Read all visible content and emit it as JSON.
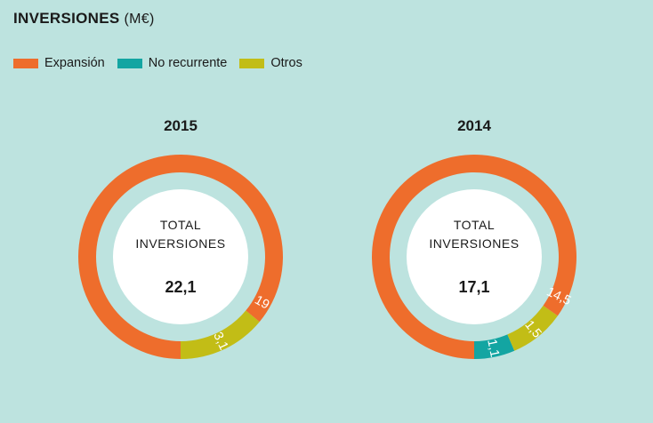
{
  "header": {
    "title": "INVERSIONES",
    "unit": "(M€)"
  },
  "legend": [
    {
      "label": "Expansión",
      "color": "#ee6d2c"
    },
    {
      "label": "No recurrente",
      "color": "#13a5a2"
    },
    {
      "label": "Otros",
      "color": "#c2bd16"
    }
  ],
  "chart_data": [
    {
      "type": "pie",
      "title": "2015",
      "center_label": "TOTAL INVERSIONES",
      "total": "22,1",
      "series": [
        {
          "name": "Expansión",
          "value": 19,
          "label": "19"
        },
        {
          "name": "No recurrente",
          "value": 0,
          "label": ""
        },
        {
          "name": "Otros",
          "value": 3.1,
          "label": "3,1"
        }
      ]
    },
    {
      "type": "pie",
      "title": "2014",
      "center_label": "TOTAL INVERSIONES",
      "total": "17,1",
      "series": [
        {
          "name": "Expansión",
          "value": 14.5,
          "label": "14,5"
        },
        {
          "name": "No recurrente",
          "value": 1.1,
          "label": "1,1"
        },
        {
          "name": "Otros",
          "value": 1.5,
          "label": "1,5"
        }
      ]
    }
  ]
}
